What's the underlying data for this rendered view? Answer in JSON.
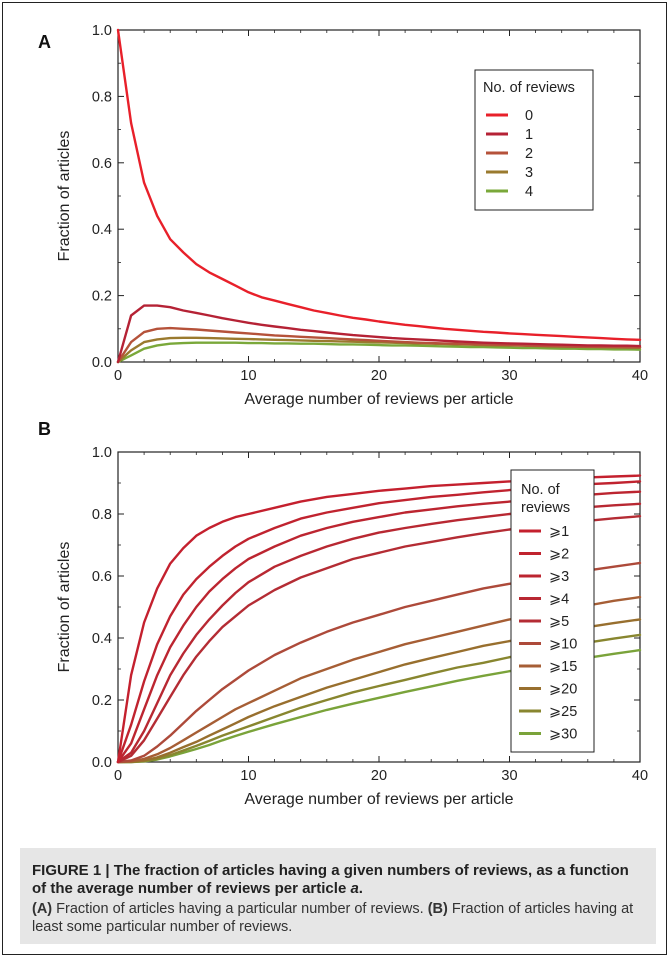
{
  "chart_data": [
    {
      "panel": "A",
      "type": "line",
      "xlabel": "Average number of reviews per article",
      "ylabel": "Fraction of articles",
      "xlim": [
        0,
        40
      ],
      "ylim": [
        0,
        1.0
      ],
      "xticks": [
        "0",
        "10",
        "20",
        "30",
        "40"
      ],
      "yticks": [
        "0.0",
        "0.2",
        "0.4",
        "0.6",
        "0.8",
        "1.0"
      ],
      "legend_title": "No. of reviews",
      "legend_position": "top-right",
      "x": [
        0,
        1,
        2,
        3,
        4,
        5,
        6,
        7,
        8,
        9,
        10,
        11,
        12,
        13,
        14,
        15,
        16,
        17,
        18,
        19,
        20,
        21,
        22,
        23,
        24,
        25,
        26,
        27,
        28,
        29,
        30,
        31,
        32,
        33,
        34,
        35,
        36,
        37,
        38,
        39,
        40
      ],
      "series": [
        {
          "name": "0",
          "color": "#e8202a",
          "values": [
            1.0,
            0.72,
            0.54,
            0.44,
            0.37,
            0.33,
            0.295,
            0.27,
            0.25,
            0.23,
            0.21,
            0.195,
            0.185,
            0.175,
            0.165,
            0.155,
            0.148,
            0.14,
            0.133,
            0.128,
            0.122,
            0.117,
            0.112,
            0.108,
            0.104,
            0.1,
            0.097,
            0.094,
            0.091,
            0.089,
            0.086,
            0.084,
            0.082,
            0.08,
            0.078,
            0.076,
            0.074,
            0.072,
            0.07,
            0.068,
            0.067
          ]
        },
        {
          "name": "1",
          "color": "#b52235",
          "values": [
            0.0,
            0.14,
            0.17,
            0.17,
            0.165,
            0.155,
            0.148,
            0.14,
            0.132,
            0.125,
            0.118,
            0.112,
            0.107,
            0.102,
            0.097,
            0.093,
            0.089,
            0.085,
            0.081,
            0.078,
            0.075,
            0.072,
            0.07,
            0.068,
            0.066,
            0.064,
            0.062,
            0.06,
            0.058,
            0.057,
            0.056,
            0.055,
            0.054,
            0.053,
            0.052,
            0.051,
            0.05,
            0.05,
            0.049,
            0.049,
            0.048
          ]
        },
        {
          "name": "2",
          "color": "#b5523a",
          "values": [
            0.0,
            0.06,
            0.09,
            0.1,
            0.102,
            0.1,
            0.098,
            0.095,
            0.092,
            0.089,
            0.086,
            0.083,
            0.08,
            0.078,
            0.076,
            0.074,
            0.072,
            0.07,
            0.068,
            0.066,
            0.064,
            0.062,
            0.06,
            0.058,
            0.057,
            0.056,
            0.055,
            0.054,
            0.053,
            0.052,
            0.051,
            0.05,
            0.049,
            0.048,
            0.047,
            0.046,
            0.046,
            0.045,
            0.045,
            0.044,
            0.044
          ]
        },
        {
          "name": "3",
          "color": "#9a7a2e",
          "values": [
            0.0,
            0.035,
            0.06,
            0.068,
            0.072,
            0.073,
            0.073,
            0.072,
            0.071,
            0.07,
            0.069,
            0.068,
            0.067,
            0.066,
            0.065,
            0.064,
            0.063,
            0.062,
            0.061,
            0.06,
            0.059,
            0.058,
            0.057,
            0.056,
            0.055,
            0.054,
            0.053,
            0.052,
            0.051,
            0.05,
            0.05,
            0.049,
            0.048,
            0.047,
            0.047,
            0.046,
            0.045,
            0.045,
            0.044,
            0.044,
            0.043
          ]
        },
        {
          "name": "4",
          "color": "#7aa83a",
          "values": [
            0.0,
            0.02,
            0.04,
            0.05,
            0.055,
            0.057,
            0.058,
            0.058,
            0.058,
            0.058,
            0.057,
            0.057,
            0.056,
            0.056,
            0.055,
            0.055,
            0.054,
            0.053,
            0.053,
            0.052,
            0.051,
            0.05,
            0.05,
            0.049,
            0.048,
            0.047,
            0.046,
            0.045,
            0.045,
            0.044,
            0.043,
            0.042,
            0.042,
            0.041,
            0.04,
            0.04,
            0.039,
            0.039,
            0.038,
            0.038,
            0.037
          ]
        }
      ]
    },
    {
      "panel": "B",
      "type": "line",
      "xlabel": "Average number of reviews per article",
      "ylabel": "Fraction of articles",
      "xlim": [
        0,
        40
      ],
      "ylim": [
        0,
        1.0
      ],
      "xticks": [
        "0",
        "10",
        "20",
        "30",
        "40"
      ],
      "yticks": [
        "0.0",
        "0.2",
        "0.4",
        "0.6",
        "0.8",
        "1.0"
      ],
      "legend_title_lines": [
        "No. of",
        "reviews"
      ],
      "legend_position": "right",
      "x": [
        0,
        1,
        2,
        3,
        4,
        5,
        6,
        7,
        8,
        9,
        10,
        12,
        14,
        16,
        18,
        20,
        22,
        24,
        26,
        28,
        30,
        32,
        34,
        36,
        38,
        40
      ],
      "series": [
        {
          "name": "⩾1",
          "color": "#c4202e",
          "values": [
            0.0,
            0.28,
            0.45,
            0.56,
            0.64,
            0.69,
            0.73,
            0.755,
            0.775,
            0.79,
            0.8,
            0.82,
            0.84,
            0.855,
            0.865,
            0.875,
            0.882,
            0.89,
            0.895,
            0.9,
            0.905,
            0.91,
            0.915,
            0.918,
            0.921,
            0.924
          ]
        },
        {
          "name": "⩾2",
          "color": "#c0232f",
          "values": [
            0.0,
            0.12,
            0.26,
            0.38,
            0.47,
            0.54,
            0.59,
            0.63,
            0.665,
            0.695,
            0.72,
            0.755,
            0.785,
            0.805,
            0.82,
            0.835,
            0.845,
            0.855,
            0.862,
            0.87,
            0.877,
            0.884,
            0.89,
            0.896,
            0.9,
            0.905
          ]
        },
        {
          "name": "⩾3",
          "color": "#bc2530",
          "values": [
            0.0,
            0.06,
            0.17,
            0.28,
            0.37,
            0.44,
            0.5,
            0.55,
            0.59,
            0.625,
            0.655,
            0.695,
            0.73,
            0.755,
            0.775,
            0.79,
            0.805,
            0.815,
            0.825,
            0.833,
            0.84,
            0.848,
            0.855,
            0.862,
            0.868,
            0.872
          ]
        },
        {
          "name": "⩾4",
          "color": "#b82832",
          "values": [
            0.0,
            0.03,
            0.1,
            0.19,
            0.28,
            0.35,
            0.41,
            0.46,
            0.505,
            0.545,
            0.58,
            0.63,
            0.665,
            0.695,
            0.72,
            0.74,
            0.755,
            0.768,
            0.78,
            0.79,
            0.8,
            0.808,
            0.815,
            0.822,
            0.828,
            0.833
          ]
        },
        {
          "name": "⩾5",
          "color": "#b42c34",
          "values": [
            0.0,
            0.02,
            0.07,
            0.14,
            0.21,
            0.28,
            0.34,
            0.39,
            0.435,
            0.47,
            0.505,
            0.555,
            0.595,
            0.625,
            0.655,
            0.675,
            0.695,
            0.71,
            0.725,
            0.738,
            0.75,
            0.76,
            0.77,
            0.778,
            0.786,
            0.793
          ]
        },
        {
          "name": "⩾10",
          "color": "#ad4a3a",
          "values": [
            0.0,
            0.005,
            0.02,
            0.05,
            0.085,
            0.125,
            0.165,
            0.2,
            0.235,
            0.265,
            0.295,
            0.345,
            0.385,
            0.42,
            0.45,
            0.475,
            0.5,
            0.52,
            0.54,
            0.56,
            0.575,
            0.59,
            0.605,
            0.618,
            0.63,
            0.642
          ]
        },
        {
          "name": "⩾15",
          "color": "#a65e35",
          "values": [
            0.0,
            0.002,
            0.01,
            0.025,
            0.045,
            0.07,
            0.095,
            0.12,
            0.145,
            0.17,
            0.19,
            0.23,
            0.27,
            0.3,
            0.33,
            0.355,
            0.38,
            0.4,
            0.42,
            0.44,
            0.46,
            0.475,
            0.49,
            0.505,
            0.52,
            0.532
          ]
        },
        {
          "name": "⩾20",
          "color": "#986f2e",
          "values": [
            0.0,
            0.001,
            0.005,
            0.015,
            0.03,
            0.048,
            0.065,
            0.085,
            0.105,
            0.125,
            0.145,
            0.18,
            0.21,
            0.24,
            0.265,
            0.29,
            0.315,
            0.335,
            0.355,
            0.375,
            0.39,
            0.405,
            0.42,
            0.435,
            0.448,
            0.46
          ]
        },
        {
          "name": "⩾25",
          "color": "#88862f",
          "values": [
            0.0,
            0.0,
            0.003,
            0.01,
            0.022,
            0.037,
            0.052,
            0.068,
            0.085,
            0.1,
            0.115,
            0.145,
            0.175,
            0.2,
            0.225,
            0.245,
            0.265,
            0.285,
            0.305,
            0.32,
            0.338,
            0.355,
            0.37,
            0.385,
            0.398,
            0.41
          ]
        },
        {
          "name": "⩾30",
          "color": "#7aa33a",
          "values": [
            0.0,
            0.0,
            0.002,
            0.008,
            0.018,
            0.03,
            0.042,
            0.055,
            0.07,
            0.084,
            0.097,
            0.122,
            0.145,
            0.168,
            0.188,
            0.207,
            0.226,
            0.244,
            0.262,
            0.278,
            0.293,
            0.308,
            0.322,
            0.336,
            0.349,
            0.361
          ]
        }
      ]
    }
  ],
  "caption": {
    "title": "FIGURE 1 | The fraction of articles having a given numbers of reviews, as a function of the average number of reviews per article ",
    "title_var": "a",
    "title_end": ".",
    "a_label": "(A)",
    "a_text": " Fraction of articles having a particular number of reviews. ",
    "b_label": "(B)",
    "b_text": " Fraction of articles having at least some particular number of reviews."
  }
}
